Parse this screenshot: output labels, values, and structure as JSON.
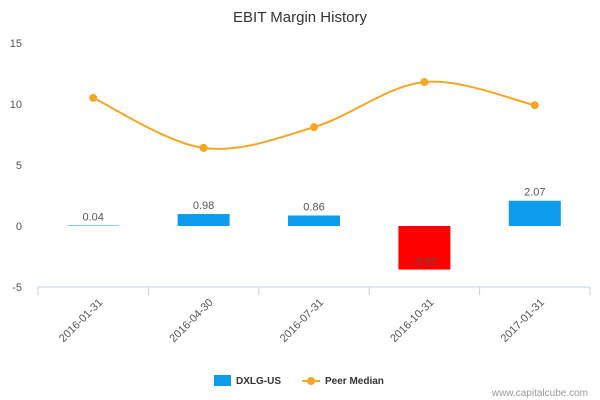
{
  "chart_data": {
    "type": "bar",
    "title": "EBIT Margin History",
    "categories": [
      "2016-01-31",
      "2016-04-30",
      "2016-07-31",
      "2016-10-31",
      "2017-01-31"
    ],
    "ylim": [
      -5,
      15
    ],
    "yticks": [
      "15",
      "10",
      "5",
      "0",
      "-5"
    ],
    "series": [
      {
        "name": "DXLG-US",
        "kind": "bar",
        "values": [
          0.04,
          0.98,
          0.86,
          -3.57,
          2.07
        ],
        "labels": [
          "0.04",
          "0.98",
          "0.86",
          "-3.57",
          "2.07"
        ],
        "color": "#0d9ceb",
        "negative_color": "#ff0000"
      },
      {
        "name": "Peer Median",
        "kind": "line",
        "values": [
          10.5,
          6.4,
          8.1,
          11.8,
          9.9
        ],
        "color": "#f5a623"
      }
    ],
    "legend_position": "bottom-center"
  },
  "credit": "www.capitalcube.com"
}
